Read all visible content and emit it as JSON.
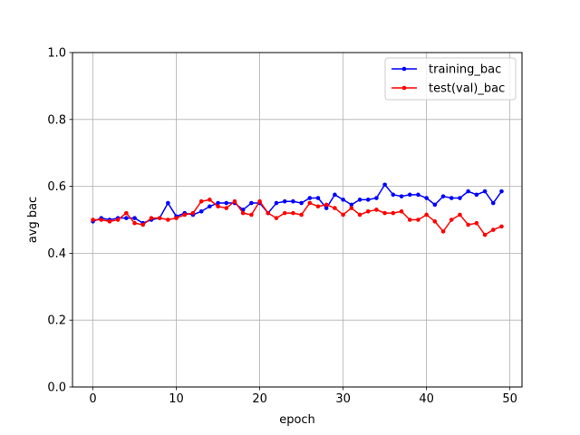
{
  "chart_data": {
    "type": "line",
    "xlabel": "epoch",
    "ylabel": "avg bac",
    "xlim": [
      -2.45,
      51.45
    ],
    "ylim": [
      0.0,
      1.0
    ],
    "xticks": [
      0,
      10,
      20,
      30,
      40,
      50
    ],
    "yticks": [
      0.0,
      0.2,
      0.4,
      0.6,
      0.8,
      1.0
    ],
    "xtick_labels": [
      "0",
      "10",
      "20",
      "30",
      "40",
      "50"
    ],
    "ytick_labels": [
      "0.0",
      "0.2",
      "0.4",
      "0.6",
      "0.8",
      "1.0"
    ],
    "grid": true,
    "legend_position": "top-right",
    "x": [
      0,
      1,
      2,
      3,
      4,
      5,
      6,
      7,
      8,
      9,
      10,
      11,
      12,
      13,
      14,
      15,
      16,
      17,
      18,
      19,
      20,
      21,
      22,
      23,
      24,
      25,
      26,
      27,
      28,
      29,
      30,
      31,
      32,
      33,
      34,
      35,
      36,
      37,
      38,
      39,
      40,
      41,
      42,
      43,
      44,
      45,
      46,
      47,
      48,
      49
    ],
    "series": [
      {
        "name": "training_bac",
        "color": "#0000ff",
        "values": [
          0.495,
          0.505,
          0.5,
          0.505,
          0.505,
          0.505,
          0.49,
          0.5,
          0.505,
          0.55,
          0.51,
          0.52,
          0.515,
          0.525,
          0.54,
          0.55,
          0.55,
          0.55,
          0.53,
          0.55,
          0.55,
          0.52,
          0.55,
          0.555,
          0.555,
          0.55,
          0.565,
          0.565,
          0.535,
          0.575,
          0.56,
          0.545,
          0.56,
          0.56,
          0.565,
          0.605,
          0.575,
          0.57,
          0.575,
          0.575,
          0.565,
          0.545,
          0.57,
          0.565,
          0.565,
          0.585,
          0.575,
          0.585,
          0.55,
          0.585
        ]
      },
      {
        "name": "test(val)_bac",
        "color": "#ff0000",
        "values": [
          0.5,
          0.5,
          0.495,
          0.5,
          0.52,
          0.49,
          0.485,
          0.505,
          0.505,
          0.5,
          0.505,
          0.515,
          0.52,
          0.555,
          0.56,
          0.54,
          0.535,
          0.555,
          0.52,
          0.515,
          0.555,
          0.52,
          0.505,
          0.52,
          0.52,
          0.515,
          0.55,
          0.54,
          0.545,
          0.535,
          0.515,
          0.535,
          0.515,
          0.525,
          0.53,
          0.52,
          0.52,
          0.525,
          0.5,
          0.5,
          0.515,
          0.495,
          0.465,
          0.5,
          0.515,
          0.485,
          0.49,
          0.455,
          0.47,
          0.48
        ]
      }
    ]
  }
}
